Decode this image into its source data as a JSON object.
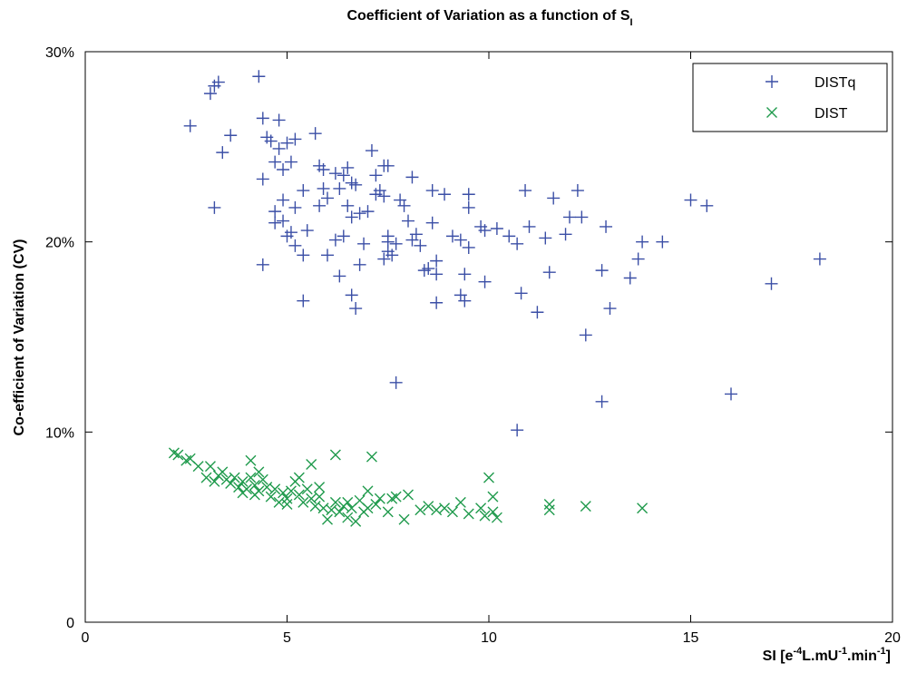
{
  "chart_data": {
    "type": "scatter",
    "title": "Coefficient of Variation as a function of S",
    "title_subscript": "I",
    "xlabel": [
      "SI [e",
      "-4",
      "L.mU",
      "-1",
      ".min",
      "-1",
      "]"
    ],
    "ylabel": "Co-efficient of Variation (CV)",
    "xlim": [
      0,
      20
    ],
    "ylim": [
      0,
      30
    ],
    "xticks": [
      0,
      5,
      10,
      15,
      20
    ],
    "yticks": [
      0,
      {
        "value": 10,
        "label": "10%"
      },
      {
        "value": 20,
        "label": "20%"
      },
      {
        "value": 30,
        "label": "30%"
      }
    ],
    "legend": "upper right",
    "series": [
      {
        "name": "DISTq",
        "color": "#3b4fa6",
        "marker": "plus",
        "x": [
          2.6,
          3.1,
          3.2,
          3.3,
          3.2,
          3.4,
          3.6,
          4.3,
          4.4,
          4.8,
          4.5,
          4.6,
          4.8,
          5.0,
          5.2,
          5.7,
          4.4,
          4.7,
          4.9,
          5.1,
          4.7,
          4.7,
          4.9,
          4.9,
          5.0,
          5.1,
          5.2,
          5.2,
          5.4,
          5.5,
          5.4,
          5.4,
          4.4,
          5.8,
          5.9,
          5.9,
          5.8,
          6.0,
          6.2,
          6.3,
          6.4,
          6.5,
          6.6,
          6.7,
          6.5,
          6.6,
          6.4,
          6.2,
          6.0,
          6.3,
          6.6,
          6.7,
          6.8,
          6.9,
          7.0,
          6.8,
          7.1,
          7.2,
          7.2,
          7.3,
          7.4,
          7.4,
          7.5,
          7.5,
          7.5,
          7.6,
          7.4,
          7.5,
          7.7,
          7.8,
          7.9,
          8.1,
          8.0,
          8.1,
          8.2,
          8.3,
          8.4,
          8.5,
          8.6,
          8.6,
          8.7,
          8.7,
          8.7,
          8.9,
          9.1,
          9.3,
          9.3,
          9.4,
          9.4,
          9.5,
          9.5,
          9.5,
          9.8,
          9.9,
          9.9,
          10.2,
          10.5,
          10.7,
          10.8,
          10.9,
          11.0,
          11.2,
          11.4,
          11.5,
          11.6,
          11.9,
          12.0,
          12.2,
          12.3,
          12.4,
          12.8,
          12.9,
          13.0,
          13.5,
          13.7,
          13.8,
          14.3,
          15.0,
          15.4,
          7.7,
          10.7,
          12.8,
          16.0,
          17.0,
          18.2
        ],
        "values": [
          26.1,
          27.8,
          28.2,
          28.4,
          21.8,
          24.7,
          25.6,
          28.7,
          26.5,
          26.4,
          25.5,
          25.3,
          24.9,
          25.2,
          25.4,
          25.7,
          23.3,
          24.2,
          23.8,
          24.2,
          21.6,
          21.0,
          22.2,
          21.1,
          20.3,
          20.5,
          21.8,
          19.8,
          22.7,
          20.6,
          19.3,
          16.9,
          18.8,
          24.0,
          23.8,
          22.8,
          21.9,
          22.3,
          23.6,
          22.8,
          23.5,
          23.9,
          23.1,
          23.0,
          21.9,
          21.3,
          20.3,
          20.1,
          19.3,
          18.2,
          17.2,
          16.5,
          18.8,
          19.9,
          21.6,
          21.5,
          24.8,
          23.5,
          22.5,
          22.7,
          22.4,
          24.0,
          24.0,
          20.0,
          19.5,
          19.3,
          19.1,
          20.3,
          19.9,
          22.2,
          21.9,
          23.4,
          21.1,
          20.1,
          20.4,
          19.8,
          18.5,
          18.6,
          22.7,
          21.0,
          19.0,
          18.3,
          16.8,
          22.5,
          20.3,
          20.1,
          17.2,
          16.9,
          18.3,
          22.5,
          21.8,
          19.7,
          20.8,
          20.6,
          17.9,
          20.7,
          20.3,
          19.9,
          17.3,
          22.7,
          20.8,
          16.3,
          20.2,
          18.4,
          22.3,
          20.4,
          21.3,
          22.7,
          21.3,
          15.1,
          18.5,
          20.8,
          16.5,
          18.1,
          19.1,
          20.0,
          20.0,
          22.2,
          21.9,
          12.6,
          10.1,
          11.6,
          12.0,
          17.8,
          19.1
        ]
      },
      {
        "name": "DIST",
        "color": "#1f9a4c",
        "marker": "cross",
        "x": [
          2.2,
          2.3,
          2.5,
          2.6,
          2.8,
          3.0,
          3.1,
          3.2,
          3.3,
          3.4,
          3.5,
          3.6,
          3.7,
          3.8,
          3.9,
          4.0,
          4.1,
          4.1,
          4.2,
          4.3,
          4.3,
          4.4,
          4.5,
          4.6,
          4.7,
          4.8,
          4.9,
          5.0,
          5.0,
          5.1,
          5.2,
          5.3,
          5.3,
          5.4,
          5.5,
          5.6,
          5.6,
          5.7,
          5.8,
          5.9,
          6.0,
          6.1,
          6.2,
          6.2,
          6.3,
          6.4,
          6.5,
          6.6,
          6.7,
          6.8,
          6.9,
          7.0,
          7.0,
          7.1,
          7.2,
          7.3,
          7.5,
          7.6,
          7.7,
          7.9,
          8.0,
          8.3,
          8.5,
          8.7,
          8.9,
          9.1,
          9.3,
          9.5,
          9.8,
          9.9,
          10.0,
          10.1,
          10.1,
          10.2,
          11.5,
          11.5,
          12.4,
          13.8,
          4.2,
          3.9,
          5.8,
          6.5
        ],
        "values": [
          8.9,
          8.8,
          8.5,
          8.6,
          8.2,
          7.6,
          8.2,
          7.4,
          7.7,
          7.9,
          7.5,
          7.3,
          7.6,
          7.1,
          7.4,
          7.0,
          8.5,
          7.6,
          7.2,
          6.9,
          7.9,
          7.5,
          7.1,
          6.6,
          7.0,
          6.3,
          6.8,
          6.5,
          6.2,
          6.9,
          7.4,
          7.6,
          6.7,
          6.3,
          7.0,
          6.5,
          8.3,
          6.1,
          6.6,
          6.0,
          5.4,
          5.9,
          6.3,
          8.8,
          5.8,
          6.1,
          5.5,
          6.0,
          5.3,
          6.4,
          5.8,
          6.9,
          6.0,
          8.7,
          6.2,
          6.5,
          5.8,
          6.5,
          6.6,
          5.4,
          6.7,
          5.9,
          6.1,
          5.9,
          6.0,
          5.8,
          6.3,
          5.7,
          6.0,
          5.6,
          7.6,
          6.6,
          5.8,
          5.5,
          6.2,
          5.9,
          6.1,
          6.0,
          6.7,
          6.8,
          7.1,
          6.3
        ]
      }
    ]
  }
}
